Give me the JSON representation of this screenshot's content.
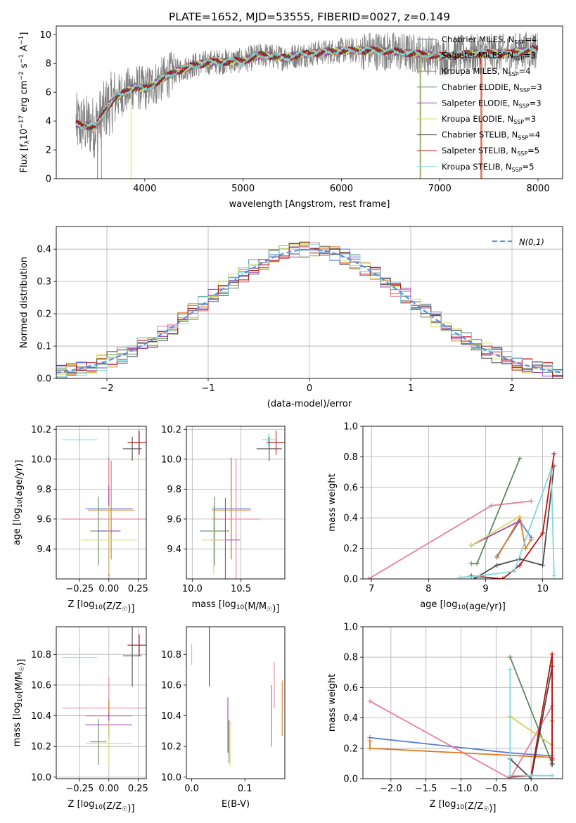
{
  "figure": {
    "title": "PLATE=1652, MJD=53555, FIBERID=0027, z=0.149"
  },
  "colors": {
    "Chabrier MILES": "#5b7dd6",
    "Salpeter MILES": "#e8809a",
    "Kroupa MILES": "#e07b22",
    "Chabrier ELODIE": "#5c8a5c",
    "Salpeter ELODIE": "#a040b8",
    "Kroupa ELODIE": "#d8dc60",
    "Chabrier STELIB": "#4a4a4a",
    "Salpeter STELIB": "#b81414",
    "Kroupa STELIB": "#7fd8dc",
    "data": "#808080",
    "gaussian": "#5b8ee0"
  },
  "chart_data": [
    {
      "id": "spectrum",
      "type": "line",
      "title": "PLATE=1652, MJD=53555, FIBERID=0027, z=0.149",
      "xlabel": "wavelength [Angstrom, rest frame]",
      "ylabel_parts": [
        "Flux [f",
        "λ",
        "10",
        "−17",
        " erg cm",
        "−2",
        " s",
        "−1",
        " A",
        "−1",
        "]"
      ],
      "xlim": [
        3100,
        8250
      ],
      "ylim": [
        0,
        10.6
      ],
      "xticks": [
        4000,
        5000,
        6000,
        7000,
        8000
      ],
      "yticks": [
        0,
        2,
        4,
        6,
        8,
        10
      ],
      "grid": false,
      "legend_position": "top-right",
      "continuum_knots": [
        [
          3300,
          3.8
        ],
        [
          3500,
          3.6
        ],
        [
          3600,
          4.8
        ],
        [
          3700,
          5.6
        ],
        [
          3900,
          6.4
        ],
        [
          4000,
          6.2
        ],
        [
          4100,
          6.6
        ],
        [
          4300,
          7.4
        ],
        [
          4500,
          7.9
        ],
        [
          4700,
          8.1
        ],
        [
          5000,
          8.2
        ],
        [
          5200,
          8.6
        ],
        [
          5400,
          8.4
        ],
        [
          5700,
          8.7
        ],
        [
          6000,
          8.9
        ],
        [
          6300,
          8.9
        ],
        [
          6600,
          8.8
        ],
        [
          7000,
          8.5
        ],
        [
          7400,
          8.7
        ],
        [
          7700,
          8.7
        ],
        [
          8000,
          9.0
        ]
      ],
      "legend": [
        {
          "model": "Chabrier MILES",
          "n_ssp": 4
        },
        {
          "model": "Salpeter MILES",
          "n_ssp": 3
        },
        {
          "model": "Kroupa MILES",
          "n_ssp": 4
        },
        {
          "model": "Chabrier ELODIE",
          "n_ssp": 3
        },
        {
          "model": "Salpeter ELODIE",
          "n_ssp": 3
        },
        {
          "model": "Kroupa ELODIE",
          "n_ssp": 3
        },
        {
          "model": "Chabrier STELIB",
          "n_ssp": 4
        },
        {
          "model": "Salpeter STELIB",
          "n_ssp": 5
        },
        {
          "model": "Kroupa STELIB",
          "n_ssp": 5
        }
      ],
      "legend_sub": "SSP"
    },
    {
      "id": "residuals",
      "type": "line",
      "xlabel": "(data-model)/error",
      "ylabel": "Normed distribution",
      "xlim": [
        -2.5,
        2.5
      ],
      "ylim": [
        0,
        0.47
      ],
      "xticks": [
        -2,
        -1,
        0,
        1,
        2
      ],
      "yticks": [
        0.0,
        0.1,
        0.2,
        0.3,
        0.4
      ],
      "grid": true,
      "legend_position": "top-right",
      "gaussian_label": "N(0,1)",
      "bin_width": 0.1
    },
    {
      "id": "age-vs-Z",
      "type": "scatter",
      "xlabel": "Z [log10(Z/Z☉)]",
      "ylabel": "age  [log10(age/yr)]",
      "xlim": [
        -0.45,
        0.32
      ],
      "ylim": [
        9.2,
        10.22
      ],
      "xticks": [
        -0.25,
        0.0,
        0.25
      ],
      "yticks": [
        9.4,
        9.6,
        9.8,
        10.0,
        10.2
      ],
      "grid": true,
      "points": [
        {
          "model": "Chabrier MILES",
          "x": 0.0,
          "xerr": 0.2,
          "y": 9.67,
          "yerr": 0.34
        },
        {
          "model": "Salpeter MILES",
          "x": 0.0,
          "xerr": 0.4,
          "y": 9.6,
          "yerr": 0.4
        },
        {
          "model": "Kroupa MILES",
          "x": 0.02,
          "xerr": 0.2,
          "y": 9.66,
          "yerr": 0.33
        },
        {
          "model": "Chabrier ELODIE",
          "x": -0.09,
          "xerr": 0.07,
          "y": 9.52,
          "yerr": 0.23
        },
        {
          "model": "Salpeter ELODIE",
          "x": 0.0,
          "xerr": 0.1,
          "y": 9.52,
          "yerr": 0.3
        },
        {
          "model": "Kroupa ELODIE",
          "x": 0.0,
          "xerr": 0.24,
          "y": 9.46,
          "yerr": 0.23
        },
        {
          "model": "Chabrier STELIB",
          "x": 0.2,
          "xerr": 0.08,
          "y": 10.07,
          "yerr": 0.08
        },
        {
          "model": "Salpeter STELIB",
          "x": 0.26,
          "xerr": 0.1,
          "y": 10.11,
          "yerr": 0.08
        },
        {
          "model": "Kroupa STELIB",
          "x": -0.25,
          "xerr": 0.15,
          "y": 10.13,
          "yerr": 0.04
        }
      ]
    },
    {
      "id": "age-vs-mass",
      "type": "scatter",
      "xlabel": "mass [log10(M/M☉)]",
      "ylabel": "",
      "xlim": [
        9.94,
        10.95
      ],
      "ylim": [
        9.2,
        10.22
      ],
      "xticks": [
        10.0,
        10.5
      ],
      "yticks": [
        9.4,
        9.6,
        9.8,
        10.0,
        10.2
      ],
      "grid": true,
      "points": [
        {
          "model": "Chabrier MILES",
          "x": 10.4,
          "xerr": 0.2,
          "y": 9.67,
          "yerr": 0.34
        },
        {
          "model": "Salpeter MILES",
          "x": 10.45,
          "xerr": 0.25,
          "y": 9.6,
          "yerr": 0.4
        },
        {
          "model": "Kroupa MILES",
          "x": 10.4,
          "xerr": 0.2,
          "y": 9.66,
          "yerr": 0.33
        },
        {
          "model": "Chabrier ELODIE",
          "x": 10.23,
          "xerr": 0.15,
          "y": 9.52,
          "yerr": 0.23
        },
        {
          "model": "Salpeter ELODIE",
          "x": 10.34,
          "xerr": 0.15,
          "y": 9.46,
          "yerr": 0.28
        },
        {
          "model": "Kroupa ELODIE",
          "x": 10.22,
          "xerr": 0.12,
          "y": 9.46,
          "yerr": 0.23
        },
        {
          "model": "Chabrier STELIB",
          "x": 10.79,
          "xerr": 0.13,
          "y": 10.07,
          "yerr": 0.08
        },
        {
          "model": "Salpeter STELIB",
          "x": 10.86,
          "xerr": 0.1,
          "y": 10.11,
          "yerr": 0.08
        },
        {
          "model": "Kroupa STELIB",
          "x": 10.78,
          "xerr": 0.07,
          "y": 10.13,
          "yerr": 0.04
        }
      ]
    },
    {
      "id": "mass-weight-vs-age",
      "type": "line",
      "xlabel": "age  [log10(age/yr)]",
      "ylabel": "mass weight",
      "xlim": [
        6.85,
        10.35
      ],
      "ylim": [
        0,
        1.0
      ],
      "xticks": [
        7,
        8,
        9,
        10
      ],
      "yticks": [
        0.0,
        0.2,
        0.4,
        0.6,
        0.8,
        1.0
      ],
      "grid": true,
      "series": [
        {
          "model": "Chabrier MILES",
          "x": [
            9.2,
            9.6,
            9.8
          ],
          "y": [
            0.15,
            0.38,
            0.27
          ]
        },
        {
          "model": "Salpeter MILES",
          "x": [
            6.95,
            9.1,
            9.8
          ],
          "y": [
            0.0,
            0.48,
            0.51
          ]
        },
        {
          "model": "Kroupa MILES",
          "x": [
            9.2,
            9.6,
            9.7,
            9.8
          ],
          "y": [
            0.14,
            0.4,
            0.2,
            0.26
          ]
        },
        {
          "model": "Chabrier ELODIE",
          "x": [
            8.75,
            8.85,
            9.6
          ],
          "y": [
            0.1,
            0.1,
            0.79
          ]
        },
        {
          "model": "Salpeter ELODIE",
          "x": [
            8.75,
            9.6
          ],
          "y": [
            0.22,
            0.38
          ]
        },
        {
          "model": "Kroupa ELODIE",
          "x": [
            8.75,
            9.6
          ],
          "y": [
            0.22,
            0.41
          ]
        },
        {
          "model": "Chabrier STELIB",
          "x": [
            8.8,
            9.2,
            9.6,
            10.0,
            10.2
          ],
          "y": [
            0.0,
            0.09,
            0.13,
            0.09,
            0.74
          ]
        },
        {
          "model": "Salpeter STELIB",
          "x": [
            8.75,
            9.3,
            9.6,
            10.0,
            10.2
          ],
          "y": [
            0.02,
            0.0,
            0.09,
            0.3,
            0.82
          ]
        },
        {
          "model": "Kroupa STELIB",
          "x": [
            8.55,
            8.9,
            9.5,
            10.15,
            10.2
          ],
          "y": [
            0.01,
            0.02,
            0.05,
            0.72,
            0.02
          ]
        }
      ]
    },
    {
      "id": "mass-vs-Z",
      "type": "scatter",
      "xlabel": "Z [log10(Z/Z☉)]",
      "ylabel": "mass [log10(M/M☉)]",
      "xlim": [
        -0.45,
        0.32
      ],
      "ylim": [
        9.99,
        10.98
      ],
      "xticks": [
        -0.25,
        0.0,
        0.25
      ],
      "yticks": [
        10.0,
        10.2,
        10.4,
        10.6,
        10.8
      ],
      "grid": true,
      "points": [
        {
          "model": "Chabrier MILES",
          "x": 0.0,
          "xerr": 0.2,
          "y": 10.4,
          "yerr": 0.1
        },
        {
          "model": "Salpeter MILES",
          "x": 0.0,
          "xerr": 0.4,
          "y": 10.45,
          "yerr": 0.2
        },
        {
          "model": "Kroupa MILES",
          "x": 0.0,
          "xerr": 0.2,
          "y": 10.4,
          "yerr": 0.1
        },
        {
          "model": "Chabrier ELODIE",
          "x": -0.09,
          "xerr": 0.07,
          "y": 10.23,
          "yerr": 0.15
        },
        {
          "model": "Salpeter ELODIE",
          "x": 0.0,
          "xerr": 0.2,
          "y": 10.34,
          "yerr": 0.08
        },
        {
          "model": "Kroupa ELODIE",
          "x": 0.0,
          "xerr": 0.2,
          "y": 10.22,
          "yerr": 0.15
        },
        {
          "model": "Chabrier STELIB",
          "x": 0.2,
          "xerr": 0.08,
          "y": 10.79,
          "yerr": 0.2
        },
        {
          "model": "Salpeter STELIB",
          "x": 0.26,
          "xerr": 0.1,
          "y": 10.86,
          "yerr": 0.07
        },
        {
          "model": "Kroupa STELIB",
          "x": -0.25,
          "xerr": 0.15,
          "y": 10.78,
          "yerr": 0.07
        }
      ]
    },
    {
      "id": "mass-vs-ebv",
      "type": "scatter",
      "xlabel": "E(B-V)",
      "ylabel": "",
      "xlim": [
        -0.01,
        0.175
      ],
      "ylim": [
        9.99,
        10.98
      ],
      "xticks": [
        0.0,
        0.1
      ],
      "yticks": [
        10.0,
        10.2,
        10.4,
        10.6,
        10.8
      ],
      "grid": false,
      "points": [
        {
          "model": "Chabrier MILES",
          "x": 0.15,
          "y": 10.4,
          "yerr": 0.2
        },
        {
          "model": "Salpeter MILES",
          "x": 0.155,
          "y": 10.6,
          "yerr": 0.15
        },
        {
          "model": "Kroupa MILES",
          "x": 0.17,
          "y": 10.45,
          "yerr": 0.18
        },
        {
          "model": "Chabrier ELODIE",
          "x": 0.07,
          "y": 10.23,
          "yerr": 0.14
        },
        {
          "model": "Salpeter ELODIE",
          "x": 0.068,
          "y": 10.34,
          "yerr": 0.18
        },
        {
          "model": "Kroupa ELODIE",
          "x": 0.072,
          "y": 10.22,
          "yerr": 0.15
        },
        {
          "model": "Chabrier STELIB",
          "x": 0.033,
          "y": 10.79,
          "yerr": 0.2
        },
        {
          "model": "Salpeter STELIB",
          "x": 0.033,
          "y": 10.8,
          "yerr": 0.12
        },
        {
          "model": "Kroupa STELIB",
          "x": 0.0,
          "y": 10.8,
          "yerr": 0.07
        }
      ]
    },
    {
      "id": "mass-weight-vs-Z",
      "type": "line",
      "xlabel": "Z [log10(Z/Z☉)]",
      "ylabel": "mass weight",
      "xlim": [
        -2.4,
        0.45
      ],
      "ylim": [
        0,
        1.0
      ],
      "xticks": [
        -2.0,
        -1.5,
        -1.0,
        -0.5,
        0.0
      ],
      "yticks": [
        0.0,
        0.2,
        0.4,
        0.6,
        0.8,
        1.0
      ],
      "grid": true,
      "series": [
        {
          "model": "Chabrier MILES",
          "x": [
            -2.3,
            -0.3,
            0.3
          ],
          "y": [
            0.27,
            0.17,
            0.15
          ]
        },
        {
          "model": "Salpeter MILES",
          "x": [
            -2.3,
            -0.3,
            0.3
          ],
          "y": [
            0.51,
            0.0,
            0.48
          ]
        },
        {
          "model": "Kroupa MILES",
          "x": [
            -2.3,
            -2.3,
            0.3,
            0.3
          ],
          "y": [
            0.25,
            0.2,
            0.14,
            0.38
          ]
        },
        {
          "model": "Chabrier ELODIE",
          "x": [
            -0.3,
            0.3,
            0.3
          ],
          "y": [
            0.8,
            0.1,
            0.12
          ]
        },
        {
          "model": "Salpeter ELODIE",
          "x": [
            -0.3,
            0.3
          ],
          "y": [
            0.41,
            0.22
          ]
        },
        {
          "model": "Kroupa ELODIE",
          "x": [
            -0.3,
            0.3
          ],
          "y": [
            0.41,
            0.22
          ]
        },
        {
          "model": "Chabrier STELIB",
          "x": [
            -0.3,
            0.0,
            0.3,
            0.3
          ],
          "y": [
            0.13,
            0.0,
            0.74,
            0.09
          ]
        },
        {
          "model": "Salpeter STELIB",
          "x": [
            -0.3,
            0.0,
            0.3,
            0.3
          ],
          "y": [
            0.01,
            0.02,
            0.82,
            0.13
          ]
        },
        {
          "model": "Kroupa STELIB",
          "x": [
            -0.3,
            -0.3,
            0.3,
            0.0
          ],
          "y": [
            0.72,
            0.02,
            0.02,
            0.02
          ]
        }
      ]
    }
  ]
}
